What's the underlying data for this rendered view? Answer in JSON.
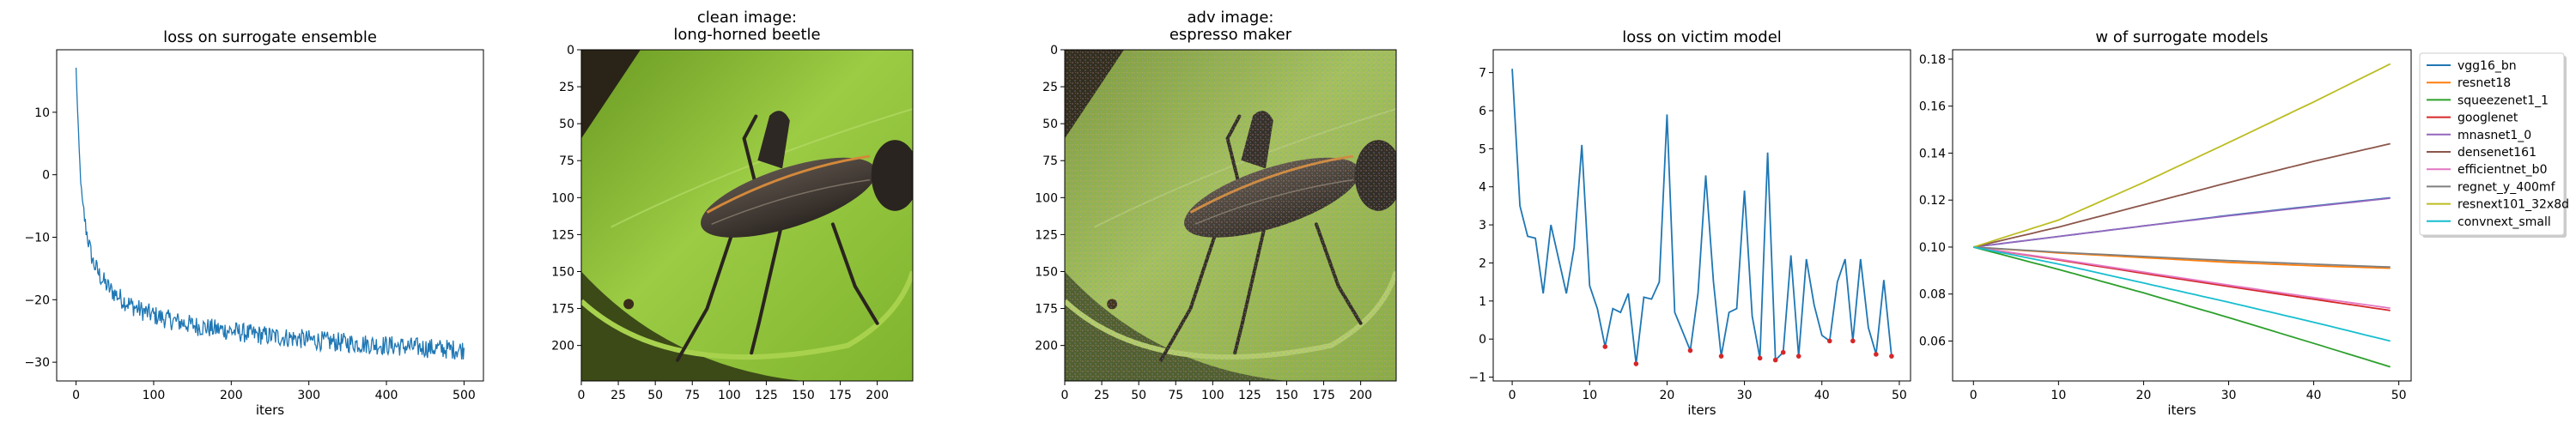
{
  "colors": {
    "loss_line": "#1f77b4",
    "victim_line": "#1f77b4",
    "victim_markers": "#d62728",
    "leaf_light": "#95c73a",
    "leaf_dark": "#5a8a1c",
    "beetle_body": "#4a4038",
    "beetle_stripe": "#d4893a"
  },
  "chart_data": [
    {
      "type": "line",
      "title": "loss on surrogate ensemble",
      "xlabel": "iters",
      "ylabel": "",
      "xlim": [
        -25,
        525
      ],
      "ylim": [
        -33,
        20
      ],
      "xticks": [
        0,
        100,
        200,
        300,
        400,
        500
      ],
      "yticks": [
        -30,
        -20,
        -10,
        0,
        10
      ],
      "grid": false,
      "series": [
        {
          "x": [
            0,
            2,
            4,
            6,
            8,
            10,
            12,
            15,
            18,
            22,
            26,
            30,
            35,
            40,
            45,
            50,
            60,
            70,
            80,
            90,
            100,
            120,
            140,
            160,
            180,
            200,
            225,
            250,
            275,
            300,
            325,
            350,
            375,
            400,
            425,
            450,
            475,
            500
          ],
          "values": [
            17,
            10,
            4,
            -1,
            -4,
            -6,
            -8,
            -10,
            -12,
            -14,
            -15,
            -16,
            -17,
            -17.8,
            -18.5,
            -19,
            -20,
            -20.8,
            -21.5,
            -22,
            -22.5,
            -23.2,
            -23.8,
            -24.3,
            -24.7,
            -25,
            -25.5,
            -25.8,
            -26.1,
            -26.4,
            -26.7,
            -26.9,
            -27.1,
            -27.3,
            -27.5,
            -27.7,
            -27.9,
            -28
          ]
        }
      ],
      "noise_amplitude": 1.6
    },
    {
      "type": "image",
      "title": "clean image:\nlong-horned beetle",
      "title_lines": [
        "clean image:",
        "long-horned beetle"
      ],
      "xlim": [
        0,
        224
      ],
      "ylim": [
        224,
        0
      ],
      "xticks": [
        0,
        25,
        50,
        75,
        100,
        125,
        150,
        175,
        200
      ],
      "yticks": [
        0,
        25,
        50,
        75,
        100,
        125,
        150,
        175,
        200
      ]
    },
    {
      "type": "image",
      "title": "adv image:\nespresso maker",
      "title_lines": [
        "adv image:",
        "espresso maker"
      ],
      "xlim": [
        0,
        224
      ],
      "ylim": [
        224,
        0
      ],
      "xticks": [
        0,
        25,
        50,
        75,
        100,
        125,
        150,
        175,
        200
      ],
      "yticks": [
        0,
        25,
        50,
        75,
        100,
        125,
        150,
        175,
        200
      ]
    },
    {
      "type": "line",
      "title": "loss on victim model",
      "xlabel": "iters",
      "ylabel": "",
      "xlim": [
        -2.45,
        51.45
      ],
      "ylim": [
        -1.1,
        7.6
      ],
      "xticks": [
        0,
        10,
        20,
        30,
        40,
        50
      ],
      "yticks": [
        -1,
        0,
        1,
        2,
        3,
        4,
        5,
        6,
        7
      ],
      "grid": false,
      "series": [
        {
          "x": [
            0,
            1,
            2,
            3,
            4,
            5,
            6,
            7,
            8,
            9,
            10,
            11,
            12,
            13,
            14,
            15,
            16,
            17,
            18,
            19,
            20,
            21,
            22,
            23,
            24,
            25,
            26,
            27,
            28,
            29,
            30,
            31,
            32,
            33,
            34,
            35,
            36,
            37,
            38,
            39,
            40,
            41,
            42,
            43,
            44,
            45,
            46,
            47,
            48,
            49
          ],
          "values": [
            7.1,
            3.5,
            2.7,
            2.65,
            1.2,
            3.0,
            2.1,
            1.2,
            2.4,
            5.1,
            1.4,
            0.8,
            -0.2,
            0.8,
            0.7,
            1.2,
            -0.65,
            1.1,
            1.05,
            1.5,
            5.9,
            0.7,
            0.2,
            -0.3,
            1.2,
            4.3,
            1.5,
            -0.45,
            0.7,
            0.8,
            3.9,
            0.6,
            -0.5,
            4.9,
            -0.55,
            -0.35,
            2.2,
            -0.45,
            2.1,
            0.9,
            0.1,
            -0.05,
            1.5,
            2.1,
            -0.05,
            2.1,
            0.3,
            -0.4,
            1.55,
            -0.45
          ]
        }
      ],
      "marked_points": [
        {
          "x": 12,
          "y": -0.2
        },
        {
          "x": 16,
          "y": -0.65
        },
        {
          "x": 23,
          "y": -0.3
        },
        {
          "x": 27,
          "y": -0.45
        },
        {
          "x": 32,
          "y": -0.5
        },
        {
          "x": 34,
          "y": -0.55
        },
        {
          "x": 35,
          "y": -0.35
        },
        {
          "x": 37,
          "y": -0.45
        },
        {
          "x": 41,
          "y": -0.05
        },
        {
          "x": 44,
          "y": -0.05
        },
        {
          "x": 47,
          "y": -0.4
        },
        {
          "x": 49,
          "y": -0.45
        }
      ]
    },
    {
      "type": "line",
      "title": "w of surrogate models",
      "xlabel": "iters",
      "ylabel": "",
      "xlim": [
        -2.45,
        51.45
      ],
      "ylim": [
        0.043,
        0.184
      ],
      "xticks": [
        0,
        10,
        20,
        30,
        40,
        50
      ],
      "yticks": [
        0.06,
        0.08,
        0.1,
        0.12,
        0.14,
        0.16,
        0.18
      ],
      "grid": false,
      "legend": "outside-right",
      "series": [
        {
          "name": "vgg16_bn",
          "color": "#1f77b4",
          "x": [
            0,
            10,
            20,
            30,
            40,
            49
          ],
          "values": [
            0.1,
            0.1045,
            0.109,
            0.1135,
            0.1175,
            0.121
          ]
        },
        {
          "name": "resnet18",
          "color": "#ff7f0e",
          "x": [
            0,
            10,
            20,
            30,
            40,
            49
          ],
          "values": [
            0.1,
            0.0975,
            0.0955,
            0.0935,
            0.092,
            0.091
          ]
        },
        {
          "name": "squeezenet1_1",
          "color": "#2ca02c",
          "x": [
            0,
            10,
            20,
            30,
            40,
            49
          ],
          "values": [
            0.1,
            0.0905,
            0.0805,
            0.07,
            0.059,
            0.049
          ]
        },
        {
          "name": "googlenet",
          "color": "#d62728",
          "x": [
            0,
            10,
            20,
            30,
            40,
            49
          ],
          "values": [
            0.1,
            0.0945,
            0.0888,
            0.0832,
            0.0778,
            0.073
          ]
        },
        {
          "name": "mnasnet1_0",
          "color": "#9467bd",
          "x": [
            0,
            10,
            20,
            30,
            40,
            49
          ],
          "values": [
            0.1,
            0.1045,
            0.109,
            0.1133,
            0.1173,
            0.1208
          ]
        },
        {
          "name": "densenet161",
          "color": "#8c564b",
          "x": [
            0,
            10,
            20,
            30,
            40,
            49
          ],
          "values": [
            0.1,
            0.1085,
            0.118,
            0.1275,
            0.1365,
            0.144
          ]
        },
        {
          "name": "efficientnet_b0",
          "color": "#e377c2",
          "x": [
            0,
            10,
            20,
            30,
            40,
            49
          ],
          "values": [
            0.1,
            0.0948,
            0.0893,
            0.0838,
            0.0785,
            0.074
          ]
        },
        {
          "name": "regnet_y_400mf",
          "color": "#7f7f7f",
          "x": [
            0,
            10,
            20,
            30,
            40,
            49
          ],
          "values": [
            0.1,
            0.0978,
            0.096,
            0.0942,
            0.0927,
            0.0915
          ]
        },
        {
          "name": "resnext101_32x8d",
          "color": "#bcbd22",
          "x": [
            0,
            10,
            20,
            30,
            40,
            49
          ],
          "values": [
            0.1,
            0.1115,
            0.1275,
            0.1445,
            0.1618,
            0.178
          ]
        },
        {
          "name": "convnext_small",
          "color": "#17becf",
          "x": [
            0,
            10,
            20,
            30,
            40,
            49
          ],
          "values": [
            0.1,
            0.0928,
            0.0847,
            0.0765,
            0.068,
            0.06
          ]
        }
      ]
    }
  ]
}
